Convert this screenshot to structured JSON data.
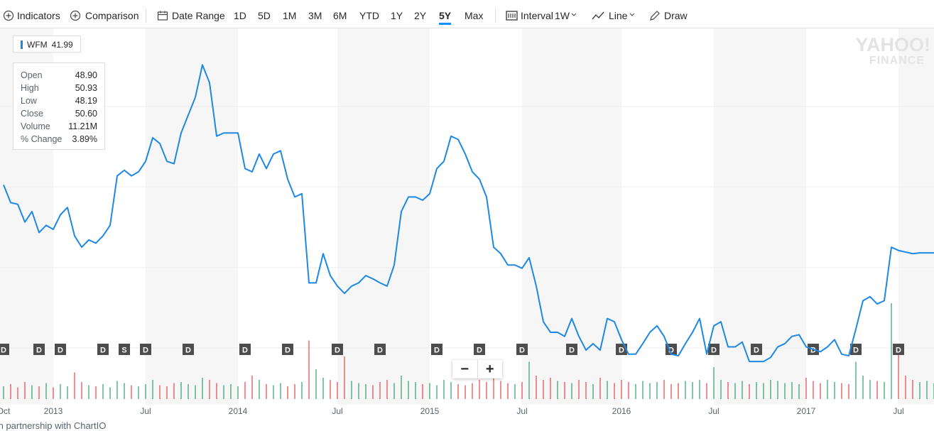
{
  "toolbar": {
    "items": [
      "Indicators",
      "Comparison",
      "Date Range",
      "1D",
      "5D",
      "1M",
      "3M",
      "6M",
      "YTD",
      "1Y",
      "2Y",
      "5Y",
      "Max",
      "Interval",
      "1W",
      "Line",
      "Draw"
    ]
  },
  "legend": {
    "symbol": "WFM",
    "value": "41.99"
  },
  "tooltip": {
    "rows": [
      [
        "Open",
        "48.90"
      ],
      [
        "High",
        "50.93"
      ],
      [
        "Low",
        "48.19"
      ],
      [
        "Close",
        "50.60"
      ],
      [
        "Volume",
        "11.21M"
      ],
      [
        "% Change",
        "3.89%"
      ]
    ]
  },
  "watermark": [
    "YAHOO!",
    "FINANCE"
  ],
  "zoom": [
    "−",
    "+"
  ],
  "footer": "In partnership with ChartIO",
  "chart_data": {
    "type": "line",
    "categories": [
      "Oct",
      null,
      null,
      null,
      null,
      null,
      null,
      "2013",
      null,
      null,
      null,
      null,
      null,
      null,
      null,
      null,
      null,
      null,
      null,
      null,
      "Jul",
      null,
      null,
      null,
      null,
      null,
      null,
      null,
      null,
      null,
      null,
      null,
      null,
      "2014",
      null,
      null,
      null,
      null,
      null,
      null,
      null,
      null,
      null,
      null,
      null,
      null,
      null,
      "Jul",
      null,
      null,
      null,
      null,
      null,
      null,
      null,
      null,
      null,
      null,
      null,
      null,
      "2015",
      null,
      null,
      null,
      null,
      null,
      null,
      null,
      null,
      null,
      null,
      null,
      null,
      "Jul",
      null,
      null,
      null,
      null,
      null,
      null,
      null,
      null,
      null,
      null,
      null,
      null,
      null,
      "2016",
      null,
      null,
      null,
      null,
      null,
      null,
      null,
      null,
      null,
      null,
      null,
      null,
      "Jul",
      null,
      null,
      null,
      null,
      null,
      null,
      null,
      null,
      null,
      null,
      null,
      null,
      "2017",
      null,
      null,
      null,
      null,
      null,
      null,
      null,
      null,
      null,
      null,
      null,
      null,
      "Jul",
      null,
      null,
      null,
      null,
      null
    ],
    "series": [
      {
        "name": "WFM",
        "color": "#1e88e5",
        "values": [
          50.7,
          48.5,
          48.3,
          46.1,
          47.4,
          44.8,
          45.7,
          45.2,
          47.0,
          47.9,
          44.4,
          43.0,
          43.9,
          43.5,
          44.4,
          45.7,
          51.8,
          52.5,
          51.8,
          52.3,
          53.6,
          56.5,
          55.8,
          53.6,
          53.3,
          57.1,
          59.3,
          61.5,
          65.5,
          63.3,
          56.7,
          57.1,
          57.1,
          57.1,
          52.7,
          52.3,
          54.5,
          52.7,
          54.5,
          54.9,
          51.4,
          49.2,
          49.6,
          38.6,
          38.6,
          42.2,
          39.5,
          38.2,
          37.3,
          38.2,
          38.6,
          39.5,
          39.1,
          38.6,
          38.2,
          40.8,
          47.4,
          49.2,
          49.2,
          48.8,
          49.6,
          52.7,
          53.6,
          56.7,
          56.3,
          54.5,
          52.3,
          51.4,
          49.2,
          43.0,
          42.2,
          40.8,
          40.8,
          40.4,
          41.7,
          38.2,
          33.8,
          32.5,
          32.5,
          32.0,
          34.2,
          32.0,
          30.3,
          31.1,
          30.3,
          34.2,
          33.8,
          31.6,
          29.8,
          29.8,
          31.1,
          32.5,
          33.3,
          32.0,
          29.8,
          29.6,
          31.1,
          32.5,
          34.2,
          29.8,
          33.3,
          33.8,
          30.7,
          30.7,
          31.3,
          28.9,
          28.9,
          28.9,
          29.4,
          30.7,
          31.1,
          32.0,
          32.2,
          30.7,
          30.4,
          30.1,
          30.7,
          31.6,
          29.8,
          29.6,
          32.9,
          36.4,
          36.9,
          36.0,
          36.4,
          43.0,
          42.6,
          42.4,
          42.2,
          42.3,
          42.3,
          42.3
        ]
      }
    ],
    "volume": [
      12,
      14,
      11,
      16,
      13,
      12,
      15,
      11,
      14,
      12,
      25,
      16,
      13,
      12,
      14,
      11,
      17,
      15,
      13,
      12,
      14,
      18,
      13,
      12,
      15,
      16,
      14,
      13,
      20,
      18,
      15,
      13,
      14,
      12,
      16,
      22,
      18,
      14,
      13,
      15,
      12,
      14,
      16,
      55,
      28,
      20,
      18,
      16,
      40,
      17,
      15,
      14,
      13,
      16,
      18,
      15,
      22,
      17,
      16,
      14,
      15,
      13,
      18,
      16,
      14,
      13,
      15,
      18,
      16,
      20,
      17,
      15,
      14,
      16,
      35,
      22,
      18,
      20,
      17,
      16,
      15,
      18,
      16,
      14,
      20,
      17,
      15,
      18,
      16,
      14,
      17,
      15,
      16,
      18,
      14,
      15,
      17,
      16,
      18,
      15,
      30,
      18,
      16,
      15,
      17,
      14,
      16,
      15,
      18,
      17,
      15,
      16,
      14,
      20,
      17,
      15,
      18,
      16,
      15,
      14,
      35,
      22,
      18,
      17,
      16,
      90,
      45,
      22,
      18,
      16,
      17,
      15
    ],
    "y2lim": [
      0,
      100
    ],
    "up_color": "#2e9e6a",
    "down_color": "#e0474c",
    "event_labels": [
      "D",
      null,
      null,
      null,
      null,
      "D",
      null,
      null,
      "D",
      null,
      null,
      null,
      null,
      null,
      "D",
      null,
      null,
      "S",
      null,
      null,
      "D",
      null,
      null,
      null,
      null,
      null,
      "D",
      null,
      null,
      null,
      null,
      null,
      null,
      null,
      "D",
      null,
      null,
      null,
      null,
      null,
      "D",
      null,
      null,
      null,
      null,
      null,
      null,
      "D",
      null,
      null,
      null,
      null,
      null,
      "D",
      null,
      null,
      null,
      null,
      null,
      null,
      null,
      "D",
      null,
      null,
      null,
      null,
      null,
      "D",
      null,
      null,
      null,
      null,
      null,
      "D",
      null,
      null,
      null,
      null,
      null,
      null,
      "D",
      null,
      null,
      null,
      null,
      null,
      null,
      "D",
      null,
      null,
      null,
      null,
      null,
      null,
      "D",
      null,
      null,
      null,
      null,
      null,
      "D",
      null,
      null,
      null,
      null,
      null,
      "D",
      null,
      null,
      null,
      null,
      null,
      null,
      null,
      "D",
      null,
      null,
      null,
      null,
      null,
      "D",
      null,
      null,
      null,
      null,
      null,
      "D",
      null,
      null,
      null,
      null,
      null
    ],
    "ylim": [
      24,
      70
    ]
  }
}
